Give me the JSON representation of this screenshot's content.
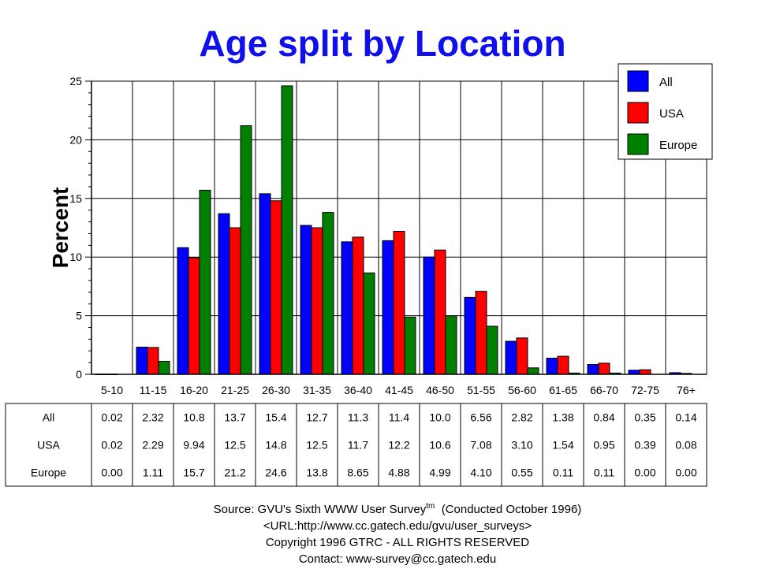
{
  "chart_data": {
    "type": "bar",
    "title": "Age split by Location",
    "ylabel": "Percent",
    "ylim": [
      0,
      25
    ],
    "yticks": [
      0,
      5,
      10,
      15,
      20,
      25
    ],
    "grid": true,
    "legend_position": "top-right",
    "categories": [
      "5-10",
      "11-15",
      "16-20",
      "21-25",
      "26-30",
      "31-35",
      "36-40",
      "41-45",
      "46-50",
      "51-55",
      "56-60",
      "61-65",
      "66-70",
      "72-75",
      "76+"
    ],
    "series": [
      {
        "name": "All",
        "color": "#0000ff",
        "values": [
          0.02,
          2.32,
          10.8,
          13.7,
          15.4,
          12.7,
          11.3,
          11.4,
          10.0,
          6.56,
          2.82,
          1.38,
          0.84,
          0.35,
          0.14
        ],
        "labels": [
          "0.02",
          "2.32",
          "10.8",
          "13.7",
          "15.4",
          "12.7",
          "11.3",
          "11.4",
          "10.0",
          "6.56",
          "2.82",
          "1.38",
          "0.84",
          "0.35",
          "0.14"
        ]
      },
      {
        "name": "USA",
        "color": "#ff0000",
        "values": [
          0.02,
          2.29,
          9.94,
          12.5,
          14.8,
          12.5,
          11.7,
          12.2,
          10.6,
          7.08,
          3.1,
          1.54,
          0.95,
          0.39,
          0.08
        ],
        "labels": [
          "0.02",
          "2.29",
          "9.94",
          "12.5",
          "14.8",
          "12.5",
          "11.7",
          "12.2",
          "10.6",
          "7.08",
          "3.10",
          "1.54",
          "0.95",
          "0.39",
          "0.08"
        ]
      },
      {
        "name": "Europe",
        "color": "#008000",
        "values": [
          0.0,
          1.11,
          15.7,
          21.2,
          24.6,
          13.8,
          8.65,
          4.88,
          4.99,
          4.1,
          0.55,
          0.11,
          0.11,
          0.0,
          0.0
        ],
        "labels": [
          "0.00",
          "1.11",
          "15.7",
          "21.2",
          "24.6",
          "13.8",
          "8.65",
          "4.88",
          "4.99",
          "4.10",
          "0.55",
          "0.11",
          "0.11",
          "0.00",
          "0.00"
        ]
      }
    ]
  },
  "footer": {
    "source_prefix": "Source: GVU's Sixth WWW User Survey",
    "source_sup": "tm",
    "source_suffix": "  (Conducted October 1996)",
    "url": "<URL:http://www.cc.gatech.edu/gvu/user_surveys>",
    "copyright": "Copyright 1996 GTRC -  ALL RIGHTS RESERVED",
    "contact": "Contact: www-survey@cc.gatech.edu"
  }
}
